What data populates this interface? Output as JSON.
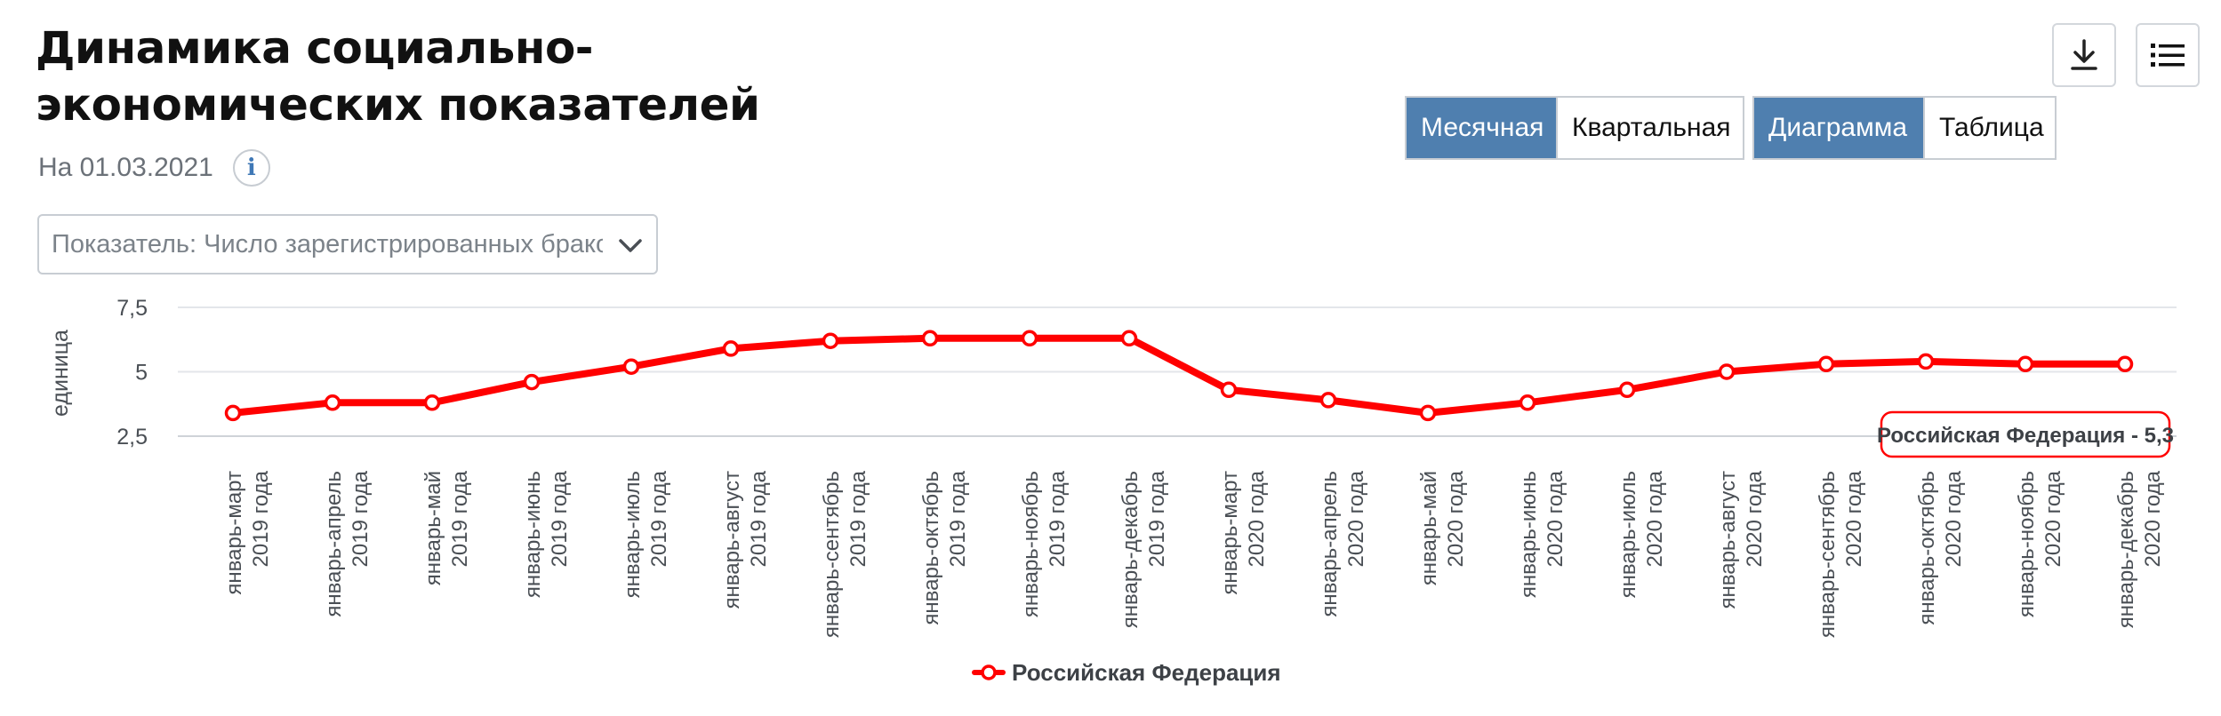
{
  "header": {
    "title": "Динамика социально-экономических показателей",
    "date": "На 01.03.2021",
    "info_label": "i"
  },
  "indicator_select": {
    "value": "Показатель: Число зарегистрированных браков"
  },
  "period_toggle": [
    {
      "label": "Месячная",
      "active": true
    },
    {
      "label": "Квартальная",
      "active": false
    }
  ],
  "view_toggle": [
    {
      "label": "Диаграмма",
      "active": true
    },
    {
      "label": "Таблица",
      "active": false
    }
  ],
  "toolbar": {
    "download_icon": "download-icon",
    "menu_icon": "list-menu-icon"
  },
  "colors": {
    "accent": "#4f7faf",
    "series": "#ff0000",
    "axis_text": "#4a4f55"
  },
  "chart_data": {
    "type": "line",
    "ylabel": "единица",
    "ylim": [
      2.5,
      7.5
    ],
    "yticks": [
      2.5,
      5,
      7.5
    ],
    "ytick_labels": [
      "2,5",
      "5",
      "7,5"
    ],
    "categories": [
      [
        "январь-март",
        "2019 года"
      ],
      [
        "январь-апрель",
        "2019 года"
      ],
      [
        "январь-май",
        "2019 года"
      ],
      [
        "январь-июнь",
        "2019 года"
      ],
      [
        "январь-июль",
        "2019 года"
      ],
      [
        "январь-август",
        "2019 года"
      ],
      [
        "январь-сентябрь",
        "2019 года"
      ],
      [
        "январь-октябрь",
        "2019 года"
      ],
      [
        "январь-ноябрь",
        "2019 года"
      ],
      [
        "январь-декабрь",
        "2019 года"
      ],
      [
        "январь-март",
        "2020 года"
      ],
      [
        "январь-апрель",
        "2020 года"
      ],
      [
        "январь-май",
        "2020 года"
      ],
      [
        "январь-июнь",
        "2020 года"
      ],
      [
        "январь-июль",
        "2020 года"
      ],
      [
        "январь-август",
        "2020 года"
      ],
      [
        "январь-сентябрь",
        "2020 года"
      ],
      [
        "январь-октябрь",
        "2020 года"
      ],
      [
        "январь-ноябрь",
        "2020 года"
      ],
      [
        "январь-декабрь",
        "2020 года"
      ]
    ],
    "series": [
      {
        "name": "Российская Федерация",
        "values": [
          3.4,
          3.8,
          3.8,
          4.6,
          5.2,
          5.9,
          6.2,
          6.3,
          6.3,
          6.3,
          4.3,
          3.9,
          3.4,
          3.8,
          4.3,
          5.0,
          5.3,
          5.4,
          5.3,
          5.3
        ]
      }
    ],
    "tooltip": "Российская Федерация - 5,3",
    "legend_position": "bottom-center",
    "grid": true
  }
}
